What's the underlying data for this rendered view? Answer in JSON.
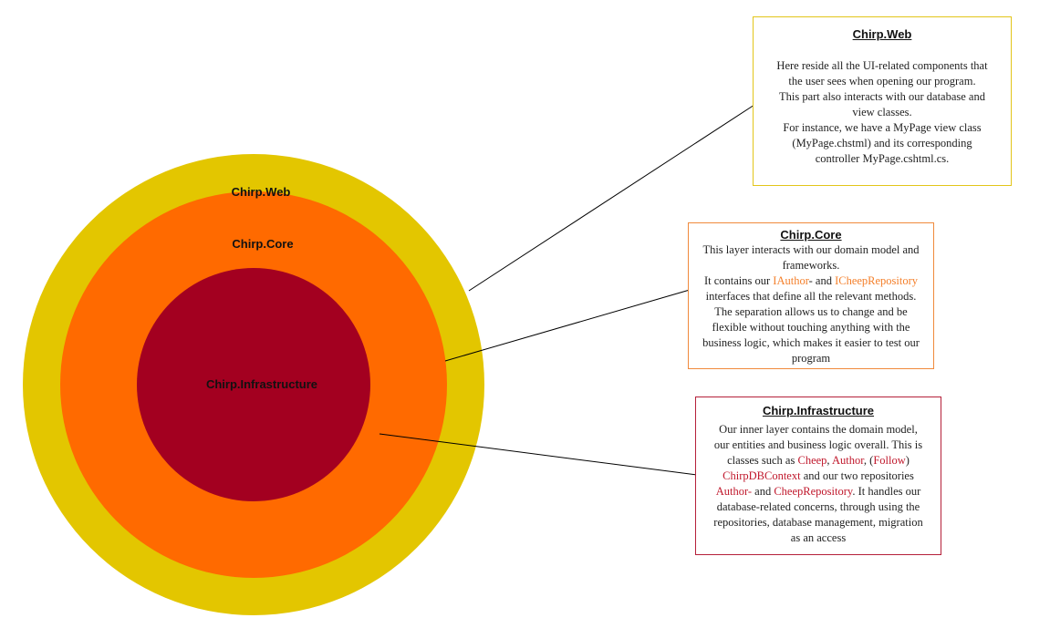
{
  "colors": {
    "web_ring": "#e3c600",
    "core_ring": "#ff6a00",
    "infra_ring": "#a30020",
    "web_box_border": "#e3c51a",
    "core_box_border": "#f08a3c",
    "infra_box_border": "#b5203a",
    "core_highlight": "#f47f2a",
    "infra_highlight": "#c0182c"
  },
  "rings": {
    "web_label": "Chirp.Web",
    "core_label": "Chirp.Core",
    "infra_label": "Chirp.Infrastructure"
  },
  "web_box": {
    "title": "Chirp.Web",
    "lines": [
      "Here reside all the UI-related components that",
      "the user sees when opening our program.",
      "This part also interacts with our database and",
      "view classes.",
      "For instance, we have a MyPage view class",
      "(MyPage.chstml) and its corresponding",
      "controller MyPage.cshtml.cs."
    ]
  },
  "core_box": {
    "title": "Chirp.Core",
    "line1": "This layer interacts with our domain model and",
    "line2": "frameworks.",
    "line3_a": "It contains our ",
    "line3_hl1": "IAuthor",
    "line3_b": "- and ",
    "line3_hl2": "ICheepRepository",
    "line4": "interfaces that define all the relevant methods.",
    "line5": "The separation allows us to change and be",
    "line6": "flexible without touching anything with the",
    "line7": "business logic, which makes it easier to test our",
    "line8": "program"
  },
  "infra_box": {
    "title": "Chirp.Infrastructure",
    "line1": "Our inner layer contains the domain model,",
    "line2": "our entities and business logic overall. This is",
    "line3_a": "classes such as ",
    "line3_hl1": "Cheep",
    "line3_b": ", ",
    "line3_hl2": "Author",
    "line3_c": ", (",
    "line3_hl3": "Follow",
    "line3_d": ")",
    "line4_hl1": "ChirpDBContext",
    "line4_a": " and our two repositories",
    "line5_hl1": "Author-",
    "line5_a": " and ",
    "line5_hl2": "CheepRepository",
    "line5_b": ". It handles our",
    "line6": "database-related concerns, through using the",
    "line7": "repositories, database management, migration",
    "line8": "as an access"
  }
}
